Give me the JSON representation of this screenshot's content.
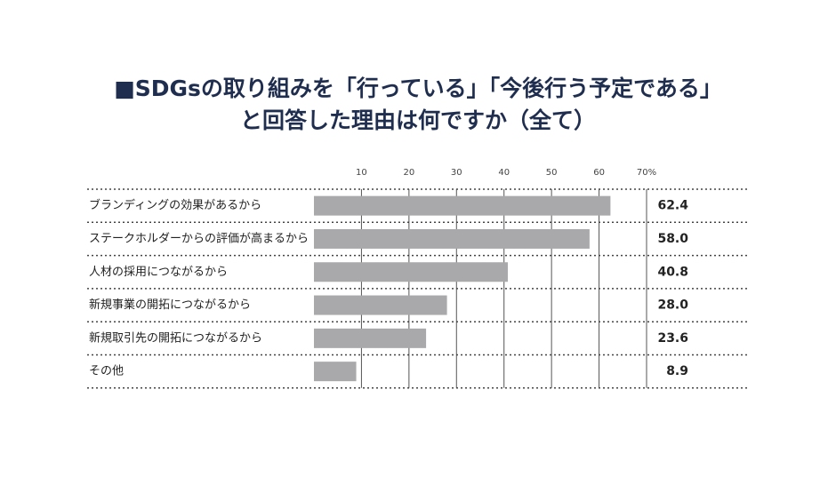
{
  "chart_data": {
    "type": "bar",
    "orientation": "horizontal",
    "title": [
      "■SDGsの取り組みを「行っている」「今後行う予定である」",
      "と回答した理由は何ですか（全て）"
    ],
    "categories": [
      "ブランディングの効果があるから",
      "ステークホルダーからの評価が高まるから",
      "人材の採用につながるから",
      "新規事業の開拓につながるから",
      "新規取引先の開拓につながるから",
      "その他"
    ],
    "values": [
      62.4,
      58.0,
      40.8,
      28.0,
      23.6,
      8.9
    ],
    "value_labels": [
      "62.4",
      "58.0",
      "40.8",
      "28.0",
      "23.6",
      "8.9"
    ],
    "color": "#a9a9ab",
    "xlim": [
      0,
      70
    ],
    "xticks": [
      10,
      20,
      30,
      40,
      50,
      60,
      {
        "value": 70,
        "label": "70%"
      }
    ],
    "grid": true
  }
}
